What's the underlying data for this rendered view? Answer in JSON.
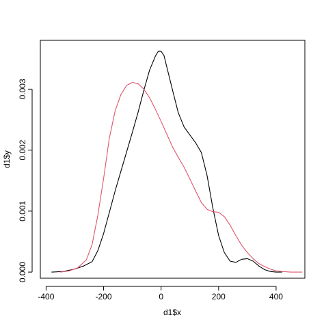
{
  "chart_data": {
    "type": "line",
    "title": "",
    "xlabel": "d1$x",
    "ylabel": "d1$y",
    "xlim": [
      -420,
      500
    ],
    "ylim": [
      -0.0001,
      0.0038
    ],
    "x_ticks": [
      -400,
      -200,
      0,
      200,
      400
    ],
    "x_tick_labels": [
      "-400",
      "-200",
      "0",
      "200",
      "400"
    ],
    "y_ticks": [
      0.0,
      0.001,
      0.002,
      0.003
    ],
    "y_tick_labels": [
      "0.000",
      "0.001",
      "0.002",
      "0.003"
    ],
    "grid": false,
    "legend": "none",
    "series": [
      {
        "color": "#000000",
        "x": [
          -380,
          -340,
          -300,
          -270,
          -240,
          -220,
          -200,
          -180,
          -160,
          -140,
          -120,
          -100,
          -80,
          -60,
          -40,
          -20,
          -10,
          0,
          10,
          20,
          40,
          60,
          80,
          100,
          120,
          140,
          160,
          180,
          200,
          220,
          240,
          260,
          280,
          300,
          320,
          340,
          360,
          380,
          400,
          420
        ],
        "y": [
          0.0,
          1e-05,
          5e-05,
          0.0001,
          0.00017,
          0.00035,
          0.00063,
          0.00098,
          0.00133,
          0.00165,
          0.00197,
          0.00229,
          0.00262,
          0.00298,
          0.00331,
          0.00354,
          0.00362,
          0.00362,
          0.00355,
          0.00336,
          0.00298,
          0.00261,
          0.00238,
          0.00225,
          0.00212,
          0.00196,
          0.00158,
          0.00105,
          0.0006,
          0.00032,
          0.00018,
          0.00016,
          0.00021,
          0.00022,
          0.00018,
          0.0001,
          4e-05,
          1e-05,
          0.0,
          0.0
        ]
      },
      {
        "color": "#df536b",
        "x": [
          -350,
          -320,
          -290,
          -260,
          -240,
          -220,
          -200,
          -180,
          -160,
          -140,
          -120,
          -100,
          -80,
          -60,
          -40,
          -20,
          0,
          20,
          40,
          60,
          80,
          100,
          120,
          140,
          160,
          180,
          200,
          220,
          240,
          260,
          280,
          300,
          320,
          340,
          360,
          380,
          400,
          420,
          450,
          490
        ],
        "y": [
          0.0,
          2e-05,
          7e-05,
          0.0002,
          0.00045,
          0.00093,
          0.00153,
          0.0022,
          0.00264,
          0.00291,
          0.00306,
          0.00311,
          0.00309,
          0.003,
          0.00286,
          0.00267,
          0.00247,
          0.00226,
          0.00205,
          0.00188,
          0.00172,
          0.00153,
          0.00133,
          0.00114,
          0.00103,
          0.00099,
          0.00098,
          0.00091,
          0.00077,
          0.0006,
          0.00044,
          0.00032,
          0.00022,
          0.00014,
          9e-05,
          5e-05,
          2e-05,
          1e-05,
          0.0,
          0.0
        ]
      }
    ]
  }
}
